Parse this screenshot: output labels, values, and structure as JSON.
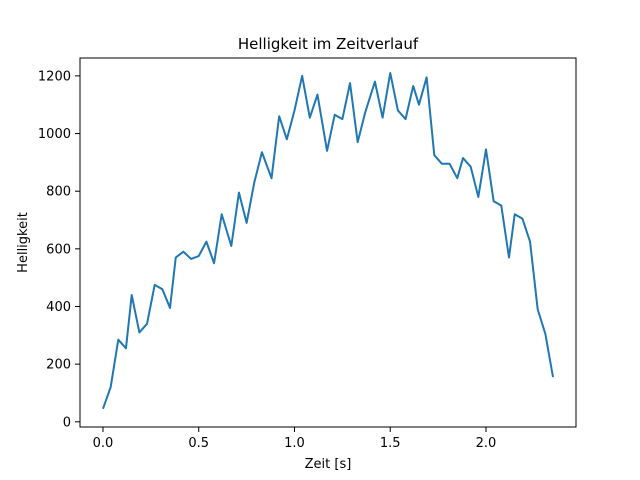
{
  "chart_data": {
    "type": "line",
    "title": "Helligkeit im Zeitverlauf",
    "xlabel": "Zeit [s]",
    "ylabel": "Helligkeit",
    "xlim": [
      -0.12,
      2.47
    ],
    "ylim": [
      -18,
      1262
    ],
    "xticks": [
      0.0,
      0.5,
      1.0,
      1.5,
      2.0
    ],
    "xtick_labels": [
      "0.0",
      "0.5",
      "1.0",
      "1.5",
      "2.0"
    ],
    "yticks": [
      0,
      200,
      400,
      600,
      800,
      1000,
      1200
    ],
    "ytick_labels": [
      "0",
      "200",
      "400",
      "600",
      "800",
      "1000",
      "1200"
    ],
    "grid": false,
    "color": "#1f77b4",
    "series": [
      {
        "x": [
          0.0,
          0.04,
          0.08,
          0.12,
          0.15,
          0.19,
          0.23,
          0.27,
          0.31,
          0.35,
          0.38,
          0.42,
          0.46,
          0.5,
          0.54,
          0.58,
          0.62,
          0.67,
          0.71,
          0.75,
          0.79,
          0.83,
          0.88,
          0.92,
          0.96,
          1.0,
          1.04,
          1.08,
          1.12,
          1.17,
          1.21,
          1.25,
          1.29,
          1.33,
          1.37,
          1.42,
          1.46,
          1.5,
          1.54,
          1.58,
          1.62,
          1.65,
          1.69,
          1.73,
          1.77,
          1.81,
          1.85,
          1.88,
          1.92,
          1.96,
          2.0,
          2.04,
          2.08,
          2.12,
          2.15,
          2.19,
          2.23,
          2.27,
          2.31,
          2.35
        ],
        "y": [
          45,
          120,
          285,
          255,
          440,
          310,
          340,
          475,
          460,
          395,
          570,
          590,
          565,
          575,
          625,
          550,
          720,
          610,
          795,
          690,
          830,
          935,
          845,
          1060,
          980,
          1080,
          1200,
          1055,
          1135,
          940,
          1065,
          1050,
          1175,
          970,
          1075,
          1180,
          1055,
          1210,
          1080,
          1050,
          1165,
          1100,
          1195,
          925,
          895,
          895,
          845,
          915,
          885,
          780,
          945,
          765,
          750,
          570,
          720,
          705,
          625,
          390,
          305,
          155
        ]
      }
    ]
  }
}
